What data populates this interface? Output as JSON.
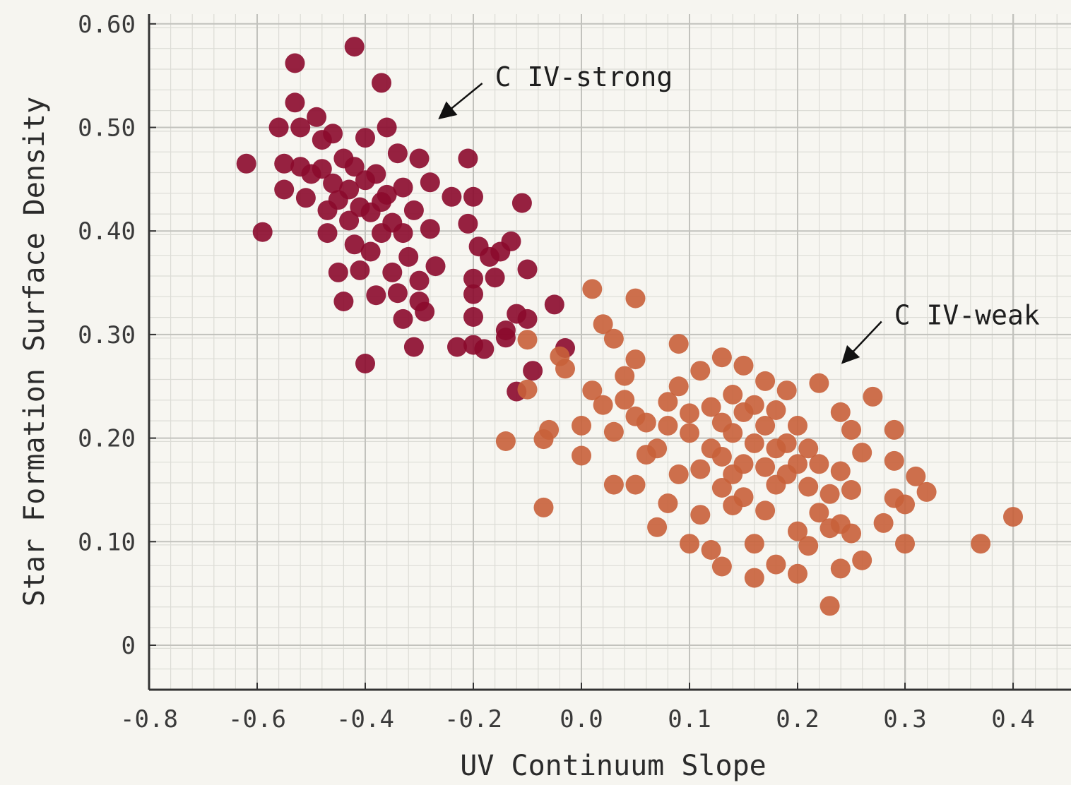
{
  "chart_data": {
    "type": "scatter",
    "title": "",
    "xlabel": "UV Continuum Slope",
    "ylabel": "Star Formation Surface Density",
    "xlim": [
      -0.8,
      0.45
    ],
    "ylim": [
      -0.043,
      0.61
    ],
    "x_ticks": [
      -0.8,
      -0.6,
      -0.4,
      -0.2,
      0.0,
      0.1,
      0.2,
      0.3,
      0.4
    ],
    "x_tick_labels": [
      "-0.8",
      "-0.6",
      "-0.4",
      "-0.2",
      "0.0",
      "0.1",
      "0.2",
      "0.3",
      "0.4"
    ],
    "y_ticks": [
      0,
      0.1,
      0.2,
      0.3,
      0.4,
      0.5,
      0.6
    ],
    "y_tick_labels": [
      "0",
      "0.10",
      "0.20",
      "0.30",
      "0.40",
      "0.50",
      "0.60"
    ],
    "grid": true,
    "minor_grid": true,
    "legend": "none",
    "annotations": [
      {
        "text": "C IV-strong",
        "x": -0.16,
        "y": 0.548,
        "arrow_to": [
          -0.26,
          0.51
        ]
      },
      {
        "text": "C IV-weak",
        "x": 0.29,
        "y": 0.318,
        "arrow_to": [
          0.243,
          0.274
        ]
      }
    ],
    "series": [
      {
        "color": "#8b0a2c",
        "points": [
          [
            -0.62,
            0.465
          ],
          [
            -0.59,
            0.399
          ],
          [
            -0.56,
            0.5
          ],
          [
            -0.55,
            0.465
          ],
          [
            -0.55,
            0.44
          ],
          [
            -0.53,
            0.562
          ],
          [
            -0.53,
            0.524
          ],
          [
            -0.52,
            0.5
          ],
          [
            -0.52,
            0.462
          ],
          [
            -0.51,
            0.432
          ],
          [
            -0.5,
            0.455
          ],
          [
            -0.49,
            0.51
          ],
          [
            -0.48,
            0.488
          ],
          [
            -0.48,
            0.46
          ],
          [
            -0.47,
            0.42
          ],
          [
            -0.47,
            0.398
          ],
          [
            -0.46,
            0.494
          ],
          [
            -0.46,
            0.446
          ],
          [
            -0.45,
            0.43
          ],
          [
            -0.45,
            0.36
          ],
          [
            -0.44,
            0.332
          ],
          [
            -0.44,
            0.47
          ],
          [
            -0.43,
            0.44
          ],
          [
            -0.43,
            0.41
          ],
          [
            -0.42,
            0.578
          ],
          [
            -0.42,
            0.462
          ],
          [
            -0.42,
            0.387
          ],
          [
            -0.41,
            0.423
          ],
          [
            -0.41,
            0.362
          ],
          [
            -0.4,
            0.272
          ],
          [
            -0.4,
            0.49
          ],
          [
            -0.4,
            0.449
          ],
          [
            -0.39,
            0.418
          ],
          [
            -0.39,
            0.38
          ],
          [
            -0.38,
            0.338
          ],
          [
            -0.38,
            0.455
          ],
          [
            -0.37,
            0.543
          ],
          [
            -0.37,
            0.428
          ],
          [
            -0.37,
            0.398
          ],
          [
            -0.36,
            0.5
          ],
          [
            -0.36,
            0.435
          ],
          [
            -0.35,
            0.36
          ],
          [
            -0.35,
            0.408
          ],
          [
            -0.34,
            0.475
          ],
          [
            -0.34,
            0.34
          ],
          [
            -0.33,
            0.315
          ],
          [
            -0.33,
            0.442
          ],
          [
            -0.33,
            0.398
          ],
          [
            -0.32,
            0.375
          ],
          [
            -0.31,
            0.288
          ],
          [
            -0.31,
            0.42
          ],
          [
            -0.3,
            0.47
          ],
          [
            -0.3,
            0.352
          ],
          [
            -0.3,
            0.332
          ],
          [
            -0.29,
            0.322
          ],
          [
            -0.28,
            0.447
          ],
          [
            -0.28,
            0.402
          ],
          [
            -0.27,
            0.366
          ],
          [
            -0.24,
            0.433
          ],
          [
            -0.23,
            0.288
          ],
          [
            -0.21,
            0.47
          ],
          [
            -0.21,
            0.407
          ],
          [
            -0.2,
            0.433
          ],
          [
            -0.2,
            0.354
          ],
          [
            -0.2,
            0.339
          ],
          [
            -0.2,
            0.317
          ],
          [
            -0.2,
            0.29
          ],
          [
            -0.19,
            0.385
          ],
          [
            -0.18,
            0.286
          ],
          [
            -0.17,
            0.375
          ],
          [
            -0.16,
            0.355
          ],
          [
            -0.15,
            0.38
          ],
          [
            -0.14,
            0.304
          ],
          [
            -0.14,
            0.297
          ],
          [
            -0.13,
            0.39
          ],
          [
            -0.12,
            0.32
          ],
          [
            -0.12,
            0.245
          ],
          [
            -0.11,
            0.427
          ],
          [
            -0.1,
            0.363
          ],
          [
            -0.1,
            0.315
          ],
          [
            -0.09,
            0.265
          ],
          [
            -0.05,
            0.329
          ],
          [
            -0.03,
            0.287
          ]
        ]
      },
      {
        "color": "#c8613a",
        "points": [
          [
            -0.14,
            0.197
          ],
          [
            -0.1,
            0.295
          ],
          [
            -0.1,
            0.247
          ],
          [
            -0.07,
            0.133
          ],
          [
            -0.07,
            0.199
          ],
          [
            -0.06,
            0.208
          ],
          [
            -0.04,
            0.279
          ],
          [
            -0.03,
            0.267
          ],
          [
            0.0,
            0.183
          ],
          [
            0.0,
            0.212
          ],
          [
            0.01,
            0.344
          ],
          [
            0.01,
            0.246
          ],
          [
            0.02,
            0.232
          ],
          [
            0.02,
            0.31
          ],
          [
            0.03,
            0.206
          ],
          [
            0.03,
            0.155
          ],
          [
            0.03,
            0.296
          ],
          [
            0.04,
            0.26
          ],
          [
            0.04,
            0.237
          ],
          [
            0.05,
            0.221
          ],
          [
            0.05,
            0.335
          ],
          [
            0.05,
            0.155
          ],
          [
            0.05,
            0.276
          ],
          [
            0.06,
            0.184
          ],
          [
            0.06,
            0.215
          ],
          [
            0.07,
            0.114
          ],
          [
            0.07,
            0.19
          ],
          [
            0.08,
            0.235
          ],
          [
            0.08,
            0.212
          ],
          [
            0.08,
            0.137
          ],
          [
            0.09,
            0.291
          ],
          [
            0.09,
            0.165
          ],
          [
            0.09,
            0.25
          ],
          [
            0.1,
            0.098
          ],
          [
            0.1,
            0.224
          ],
          [
            0.1,
            0.205
          ],
          [
            0.11,
            0.265
          ],
          [
            0.11,
            0.17
          ],
          [
            0.11,
            0.126
          ],
          [
            0.12,
            0.092
          ],
          [
            0.12,
            0.23
          ],
          [
            0.12,
            0.19
          ],
          [
            0.13,
            0.278
          ],
          [
            0.13,
            0.215
          ],
          [
            0.13,
            0.182
          ],
          [
            0.13,
            0.152
          ],
          [
            0.13,
            0.076
          ],
          [
            0.14,
            0.242
          ],
          [
            0.14,
            0.205
          ],
          [
            0.14,
            0.165
          ],
          [
            0.14,
            0.135
          ],
          [
            0.15,
            0.27
          ],
          [
            0.15,
            0.225
          ],
          [
            0.15,
            0.175
          ],
          [
            0.15,
            0.143
          ],
          [
            0.16,
            0.232
          ],
          [
            0.16,
            0.195
          ],
          [
            0.16,
            0.098
          ],
          [
            0.16,
            0.065
          ],
          [
            0.17,
            0.255
          ],
          [
            0.17,
            0.212
          ],
          [
            0.17,
            0.172
          ],
          [
            0.17,
            0.13
          ],
          [
            0.18,
            0.227
          ],
          [
            0.18,
            0.19
          ],
          [
            0.18,
            0.155
          ],
          [
            0.18,
            0.078
          ],
          [
            0.19,
            0.246
          ],
          [
            0.19,
            0.195
          ],
          [
            0.19,
            0.165
          ],
          [
            0.2,
            0.212
          ],
          [
            0.2,
            0.175
          ],
          [
            0.2,
            0.11
          ],
          [
            0.2,
            0.069
          ],
          [
            0.21,
            0.19
          ],
          [
            0.21,
            0.153
          ],
          [
            0.21,
            0.096
          ],
          [
            0.22,
            0.128
          ],
          [
            0.22,
            0.253
          ],
          [
            0.22,
            0.175
          ],
          [
            0.23,
            0.038
          ],
          [
            0.23,
            0.146
          ],
          [
            0.23,
            0.113
          ],
          [
            0.24,
            0.168
          ],
          [
            0.24,
            0.225
          ],
          [
            0.24,
            0.117
          ],
          [
            0.24,
            0.074
          ],
          [
            0.25,
            0.208
          ],
          [
            0.25,
            0.15
          ],
          [
            0.25,
            0.108
          ],
          [
            0.26,
            0.082
          ],
          [
            0.26,
            0.186
          ],
          [
            0.27,
            0.24
          ],
          [
            0.28,
            0.118
          ],
          [
            0.29,
            0.208
          ],
          [
            0.29,
            0.178
          ],
          [
            0.29,
            0.142
          ],
          [
            0.3,
            0.136
          ],
          [
            0.3,
            0.098
          ],
          [
            0.31,
            0.163
          ],
          [
            0.32,
            0.148
          ],
          [
            0.37,
            0.098
          ],
          [
            0.4,
            0.124
          ]
        ]
      }
    ]
  }
}
